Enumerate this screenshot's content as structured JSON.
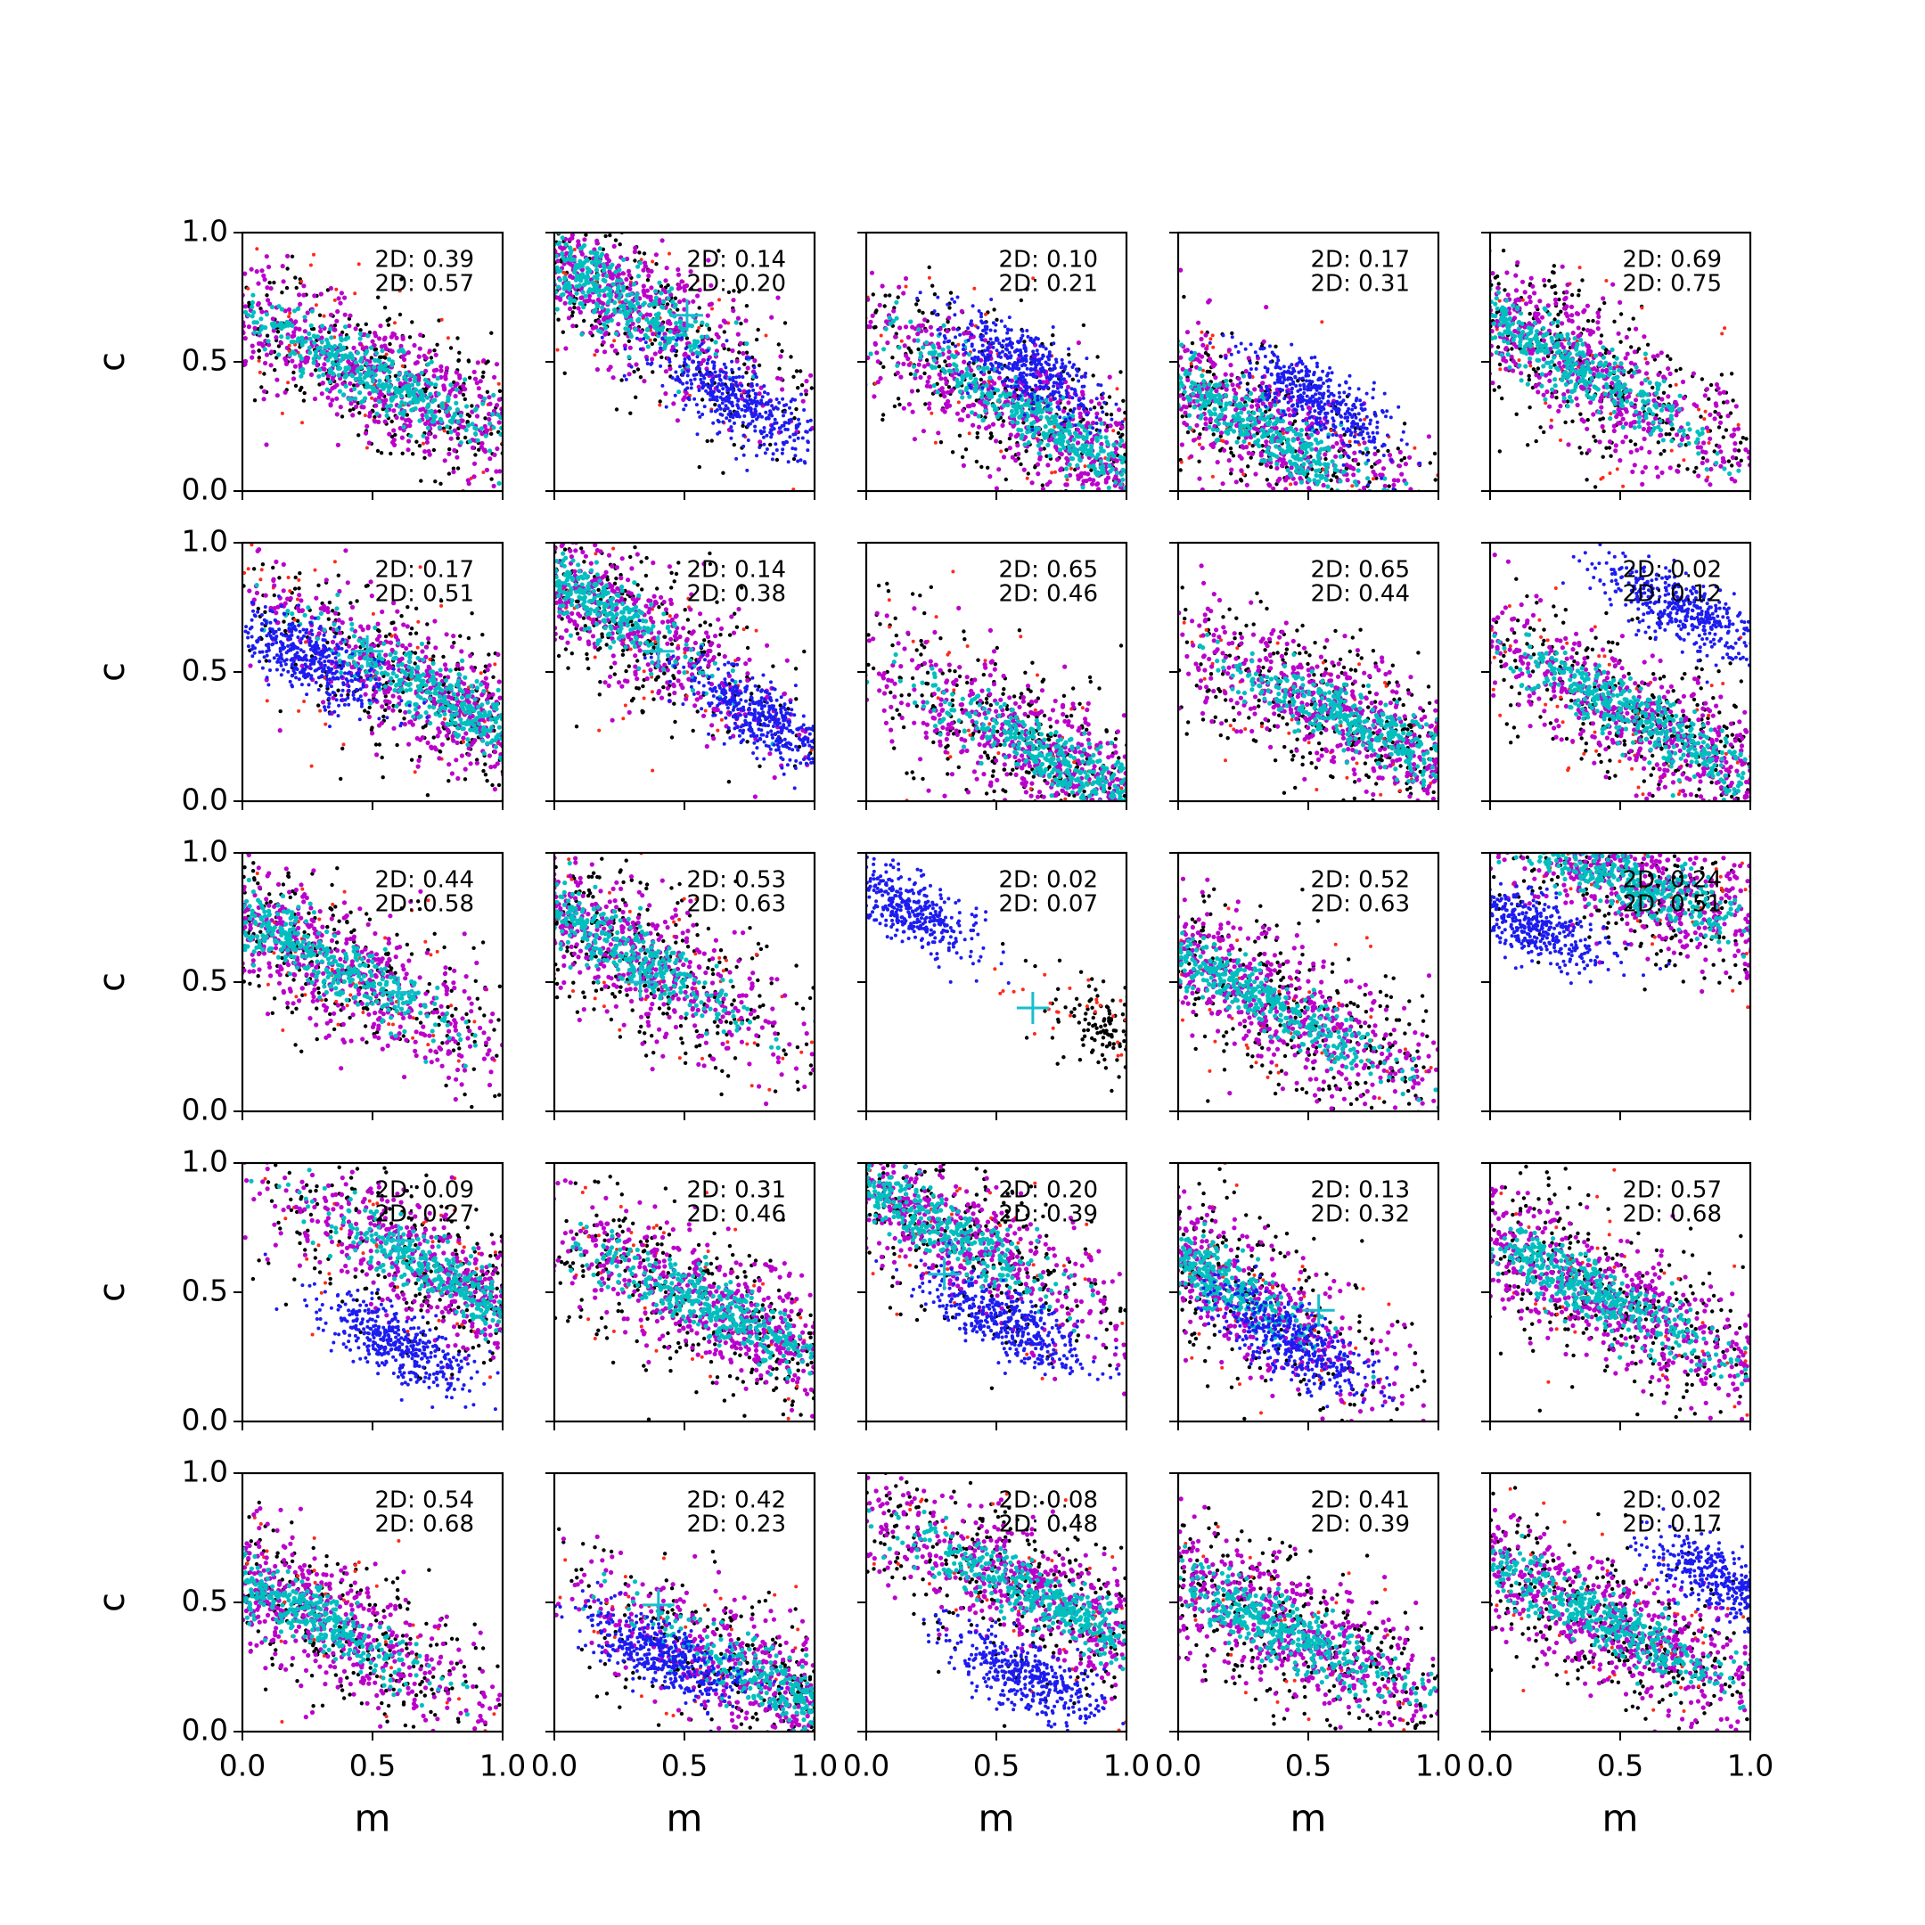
{
  "chart_data": {
    "type": "scatter",
    "layout": "5x5 grid of scatter panels",
    "xlim": [
      0.0,
      1.0
    ],
    "ylim": [
      0.0,
      1.0
    ],
    "xlabel": "m",
    "ylabel": "c",
    "xticks": [
      "0.0",
      "0.5",
      "1.0"
    ],
    "yticks": [
      "0.0",
      "0.5",
      "1.0"
    ],
    "annotation_prefix": "2D: ",
    "colors": {
      "black": "#000000",
      "red": "#ff2a1a",
      "blue": "#1c1cf0",
      "magenta": "#bb00cc",
      "cyan": "#00bfbf",
      "marker": "#17becf"
    },
    "panels": [
      {
        "row": 0,
        "col": 0,
        "label1": "2D: 0.39",
        "label2": "2D: 0.57",
        "mode": "std",
        "cx": 0.5,
        "cy": 0.45,
        "slope": -0.5,
        "blue": null,
        "cross": null
      },
      {
        "row": 0,
        "col": 1,
        "label1": "2D: 0.14",
        "label2": "2D: 0.20",
        "mode": "std",
        "cx": 0.15,
        "cy": 0.8,
        "slope": -0.6,
        "blue": [
          0.7,
          0.35
        ],
        "cross": [
          0.51,
          0.68
        ]
      },
      {
        "row": 0,
        "col": 2,
        "label1": "2D: 0.10",
        "label2": "2D: 0.21",
        "mode": "std",
        "cx": 0.7,
        "cy": 0.25,
        "slope": -0.6,
        "blue": [
          0.6,
          0.5
        ],
        "cross": null
      },
      {
        "row": 0,
        "col": 3,
        "label1": "2D: 0.17",
        "label2": "2D: 0.31",
        "mode": "std",
        "cx": 0.3,
        "cy": 0.25,
        "slope": -0.6,
        "blue": [
          0.55,
          0.35
        ],
        "cross": null
      },
      {
        "row": 0,
        "col": 4,
        "label1": "2D: 0.69",
        "label2": "2D: 0.75",
        "mode": "std",
        "cx": 0.3,
        "cy": 0.5,
        "slope": -0.6,
        "blue": null,
        "cross": null
      },
      {
        "row": 1,
        "col": 0,
        "label1": "2D: 0.17",
        "label2": "2D: 0.51",
        "mode": "std",
        "cx": 0.8,
        "cy": 0.38,
        "slope": -0.55,
        "blue": [
          0.25,
          0.55
        ],
        "cross": [
          0.48,
          0.58
        ]
      },
      {
        "row": 1,
        "col": 1,
        "label1": "2D: 0.14",
        "label2": "2D: 0.38",
        "mode": "std",
        "cx": 0.1,
        "cy": 0.8,
        "slope": -0.65,
        "blue": [
          0.8,
          0.32
        ],
        "cross": [
          0.4,
          0.58
        ]
      },
      {
        "row": 1,
        "col": 2,
        "label1": "2D: 0.65",
        "label2": "2D: 0.46",
        "mode": "std",
        "cx": 0.75,
        "cy": 0.15,
        "slope": -0.5,
        "blue": null,
        "cross": null
      },
      {
        "row": 1,
        "col": 3,
        "label1": "2D: 0.65",
        "label2": "2D: 0.44",
        "mode": "std",
        "cx": 0.7,
        "cy": 0.3,
        "slope": -0.45,
        "blue": null,
        "cross": null
      },
      {
        "row": 1,
        "col": 4,
        "label1": "2D: 0.02",
        "label2": "2D: 0.12",
        "mode": "std",
        "cx": 0.6,
        "cy": 0.3,
        "slope": -0.55,
        "blue": [
          0.72,
          0.75
        ],
        "cross": null
      },
      {
        "row": 2,
        "col": 0,
        "label1": "2D: 0.44",
        "label2": "2D: 0.58",
        "mode": "std",
        "cx": 0.25,
        "cy": 0.62,
        "slope": -0.55,
        "blue": null,
        "cross": [
          0.6,
          0.46
        ]
      },
      {
        "row": 2,
        "col": 1,
        "label1": "2D: 0.53",
        "label2": "2D: 0.63",
        "mode": "std",
        "cx": 0.2,
        "cy": 0.67,
        "slope": -0.6,
        "blue": null,
        "cross": [
          0.33,
          0.5
        ]
      },
      {
        "row": 2,
        "col": 2,
        "label1": "2D: 0.02",
        "label2": "2D: 0.07",
        "mode": "sparse",
        "cx": 0.95,
        "cy": 0.3,
        "slope": -0.6,
        "blue": [
          0.15,
          0.8
        ],
        "cross": [
          0.64,
          0.4
        ]
      },
      {
        "row": 2,
        "col": 3,
        "label1": "2D: 0.52",
        "label2": "2D: 0.63",
        "mode": "std",
        "cx": 0.3,
        "cy": 0.45,
        "slope": -0.55,
        "blue": null,
        "cross": null
      },
      {
        "row": 2,
        "col": 4,
        "label1": "2D: 0.24",
        "label2": "2D: 0.51",
        "mode": "std",
        "cx": 0.55,
        "cy": 0.88,
        "slope": -0.4,
        "blue": [
          0.15,
          0.72
        ],
        "cross": null
      },
      {
        "row": 3,
        "col": 0,
        "label1": "2D: 0.09",
        "label2": "2D: 0.27",
        "mode": "std",
        "cx": 0.85,
        "cy": 0.52,
        "slope": -0.55,
        "blue": [
          0.6,
          0.3
        ],
        "cross": [
          0.6,
          0.7
        ]
      },
      {
        "row": 3,
        "col": 1,
        "label1": "2D: 0.31",
        "label2": "2D: 0.46",
        "mode": "std",
        "cx": 0.65,
        "cy": 0.42,
        "slope": -0.5,
        "blue": null,
        "cross": null
      },
      {
        "row": 3,
        "col": 2,
        "label1": "2D: 0.20",
        "label2": "2D: 0.39",
        "mode": "std",
        "cx": 0.2,
        "cy": 0.8,
        "slope": -0.55,
        "blue": [
          0.55,
          0.38
        ],
        "cross": [
          0.3,
          0.57
        ]
      },
      {
        "row": 3,
        "col": 3,
        "label1": "2D: 0.13",
        "label2": "2D: 0.32",
        "mode": "std",
        "cx": 0.05,
        "cy": 0.6,
        "slope": -0.6,
        "blue": [
          0.45,
          0.3
        ],
        "cross": [
          0.54,
          0.43
        ]
      },
      {
        "row": 3,
        "col": 4,
        "label1": "2D: 0.57",
        "label2": "2D: 0.68",
        "mode": "std",
        "cx": 0.4,
        "cy": 0.5,
        "slope": -0.5,
        "blue": null,
        "cross": null
      },
      {
        "row": 4,
        "col": 0,
        "label1": "2D: 0.54",
        "label2": "2D: 0.68",
        "mode": "std",
        "cx": 0.2,
        "cy": 0.48,
        "slope": -0.55,
        "blue": null,
        "cross": null
      },
      {
        "row": 4,
        "col": 1,
        "label1": "2D: 0.42",
        "label2": "2D: 0.23",
        "mode": "std",
        "cx": 0.9,
        "cy": 0.15,
        "slope": -0.5,
        "blue": [
          0.4,
          0.3
        ],
        "cross": [
          0.4,
          0.49
        ]
      },
      {
        "row": 4,
        "col": 2,
        "label1": "2D: 0.08",
        "label2": "2D: 0.48",
        "mode": "std",
        "cx": 0.7,
        "cy": 0.5,
        "slope": -0.5,
        "blue": [
          0.6,
          0.22
        ],
        "cross": null
      },
      {
        "row": 4,
        "col": 3,
        "label1": "2D: 0.41",
        "label2": "2D: 0.39",
        "mode": "std",
        "cx": 0.4,
        "cy": 0.4,
        "slope": -0.5,
        "blue": null,
        "cross": null
      },
      {
        "row": 4,
        "col": 4,
        "label1": "2D: 0.02",
        "label2": "2D: 0.17",
        "mode": "std",
        "cx": 0.4,
        "cy": 0.45,
        "slope": -0.5,
        "blue": [
          0.9,
          0.58
        ],
        "cross": null
      }
    ]
  }
}
